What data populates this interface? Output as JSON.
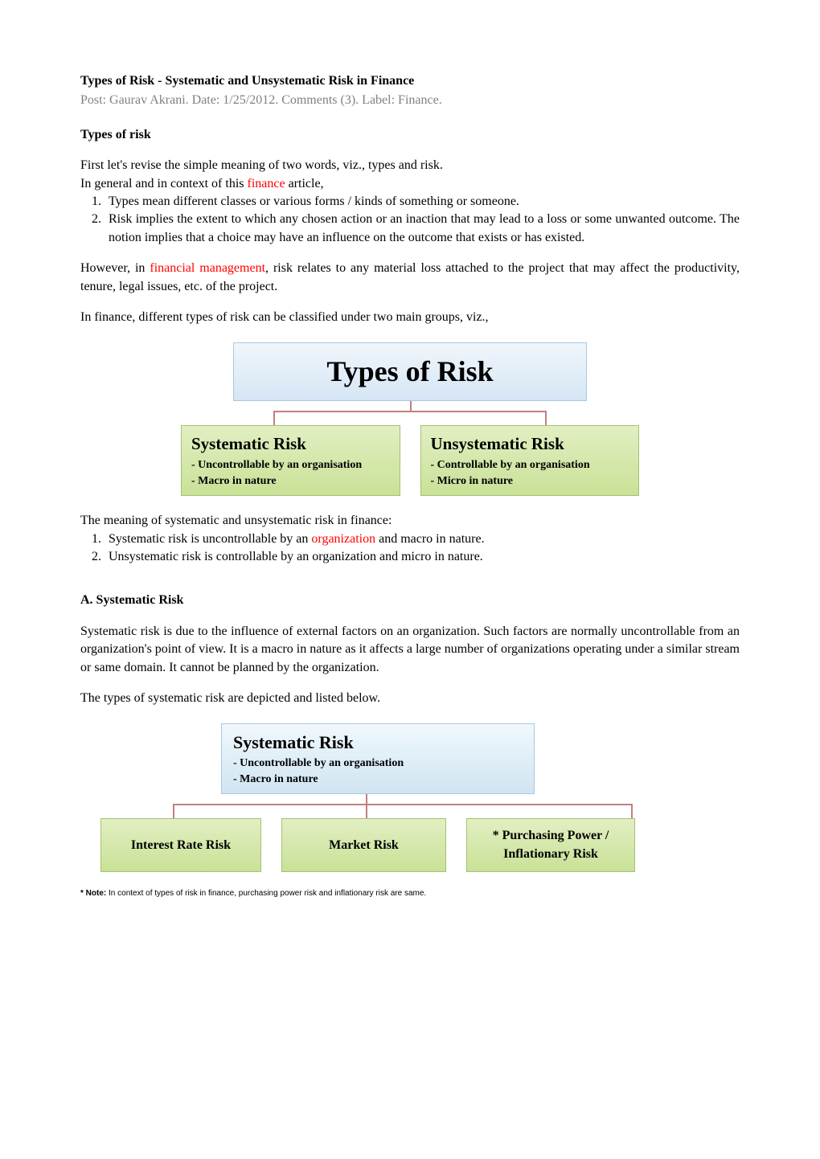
{
  "title": "Types of Risk - Systematic and Unsystematic Risk in Finance",
  "meta": "Post: Gaurav Akrani. Date: 1/25/2012. Comments (3). Label: Finance.",
  "section1": {
    "heading": "Types of risk",
    "p1": "First let's revise the simple meaning of two words, viz., types and risk.",
    "p2_before": "In general and in context of this ",
    "p2_link": "finance",
    "p2_after": " article,",
    "list": {
      "item1": "Types mean different classes or various forms / kinds of something or someone.",
      "item2": "Risk implies the extent to which any chosen action or an inaction that may lead to a loss or some unwanted outcome. The notion implies that a choice may have an influence on the outcome that exists or has existed."
    },
    "p3_before": "However, in ",
    "p3_link": "financial management",
    "p3_after": ", risk relates to any material loss attached to the project that may affect the productivity, tenure, legal issues, etc. of the project.",
    "p4": "In finance, different types of risk can be classified under two main groups, viz.,"
  },
  "diagram1": {
    "title": "Types of Risk",
    "left": {
      "title": "Systematic Risk",
      "line1": "- Uncontrollable by an organisation",
      "line2": "- Macro in nature"
    },
    "right": {
      "title": "Unsystematic Risk",
      "line1": "- Controllable by an organisation",
      "line2": "- Micro in nature"
    },
    "colors": {
      "title_bg_top": "#f0f6fb",
      "title_bg_bottom": "#d6e6f5",
      "box_bg_top": "#e2efc2",
      "box_bg_bottom": "#c9e197",
      "connector": "#c08080"
    }
  },
  "section2": {
    "p1": "The meaning of systematic and unsystematic risk in finance:",
    "list": {
      "item1_before": "Systematic risk is uncontrollable by an ",
      "item1_link": "organization",
      "item1_after": " and macro in nature.",
      "item2": "Unsystematic risk is controllable by an organization and micro in nature."
    }
  },
  "section3": {
    "heading": "A. Systematic Risk",
    "p1": "Systematic risk is due to the influence of external factors on an organization. Such factors are normally uncontrollable from an organization's point of view.  It is a macro in nature as it affects a large number of organizations operating under a similar stream or same domain. It cannot be planned by the organization.",
    "p2": "The types of systematic risk are depicted and listed below."
  },
  "diagram2": {
    "title": "Systematic Risk",
    "line1": "- Uncontrollable by an organisation",
    "line2": "- Macro in nature",
    "box1": "Interest Rate Risk",
    "box2": "Market Risk",
    "box3": "* Purchasing Power / Inflationary Risk"
  },
  "note": {
    "label": "* Note:",
    "text": "  In context of types of risk in finance, purchasing power risk and inflationary risk are same."
  }
}
